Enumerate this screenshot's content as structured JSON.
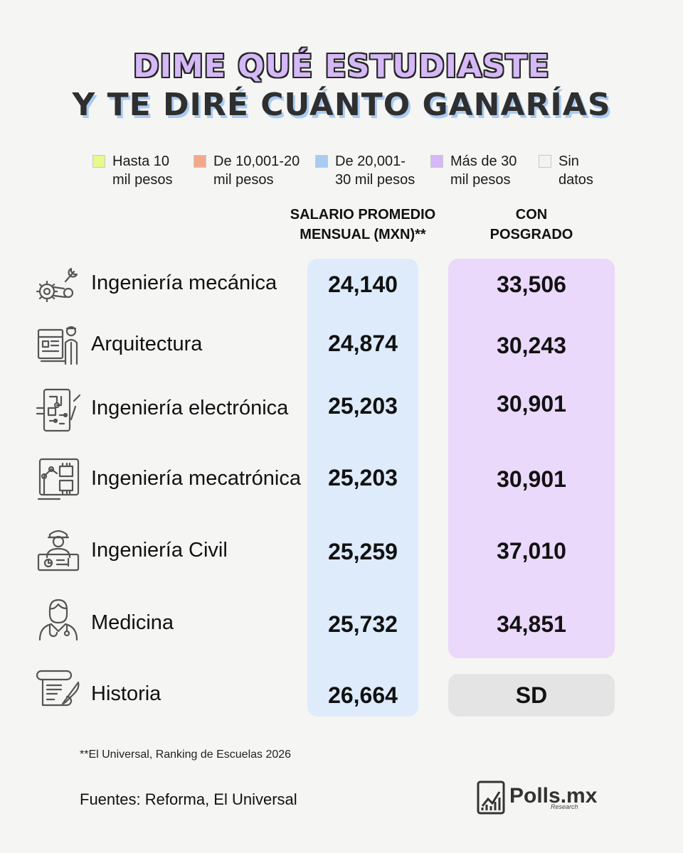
{
  "title": {
    "line1": "DIME QUÉ ESTUDIASTE",
    "line2": "Y TE DIRÉ CUÁNTO GANARÍAS"
  },
  "legend": [
    {
      "label": "Hasta 10\nmil pesos",
      "color": "#e6f98a"
    },
    {
      "label": "De 10,001-20\nmil pesos",
      "color": "#f4a88a"
    },
    {
      "label": "De 20,001-\n30 mil pesos",
      "color": "#a9cbf2"
    },
    {
      "label": "Más de 30\nmil pesos",
      "color": "#d5b8f6"
    },
    {
      "label": "Sin\ndatos",
      "color": "#f2f2f2"
    }
  ],
  "columns": {
    "salary_header": "SALARIO PROMEDIO\nMENSUAL (MXN)**",
    "postgrad_header": "CON\nPOSGRADO"
  },
  "chart_data": {
    "type": "table",
    "title": "DIME QUÉ ESTUDIASTE Y TE DIRÉ CUÁNTO GANARÍAS",
    "columns": [
      "SALARIO PROMEDIO MENSUAL (MXN)**",
      "CON POSGRADO"
    ],
    "rows": [
      {
        "career": "Ingeniería mecánica",
        "salary": "24,140",
        "postgrad": "33,506",
        "icon": "gears-wrench-icon"
      },
      {
        "career": "Arquitectura",
        "salary": "24,874",
        "postgrad": "30,243",
        "icon": "architect-icon"
      },
      {
        "career": "Ingeniería electrónica",
        "salary": "25,203",
        "postgrad": "30,901",
        "icon": "circuit-board-icon"
      },
      {
        "career": "Ingeniería mecatrónica",
        "salary": "25,203",
        "postgrad": "30,901",
        "icon": "robot-arm-icon"
      },
      {
        "career": "Ingeniería Civil",
        "salary": "25,259",
        "postgrad": "37,010",
        "icon": "civil-engineer-icon"
      },
      {
        "career": "Medicina",
        "salary": "25,732",
        "postgrad": "34,851",
        "icon": "doctor-icon"
      },
      {
        "career": "Historia",
        "salary": "26,664",
        "postgrad": "SD",
        "icon": "scroll-quill-icon"
      }
    ]
  },
  "footnote": "**El Universal, Ranking de Escuelas 2026",
  "sources": "Fuentes: Reforma, El Universal",
  "logo": {
    "name": "Polls.mx",
    "sub": "Research"
  }
}
